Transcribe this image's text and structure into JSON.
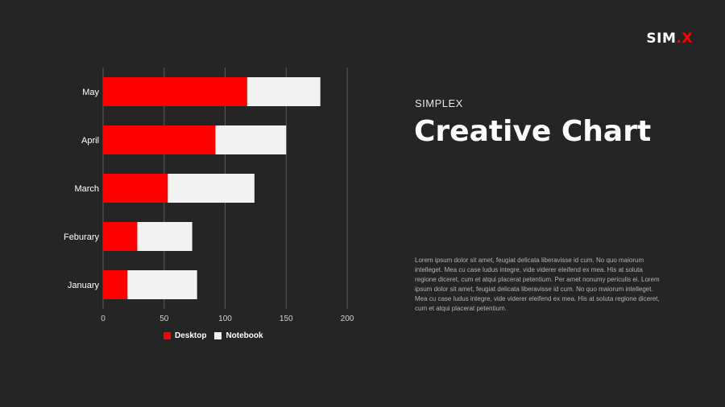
{
  "brand": {
    "logo_main": "SIM",
    "logo_dot": ".",
    "logo_tail": "X"
  },
  "kicker": "SIMPLEX",
  "title": "Creative Chart",
  "body_text": "Lorem ipsum dolor sit amet, feugiat delicata liberavisse id cum. No quo maiorum intelleget. Mea cu case ludus integre, vide viderer eleifend ex mea. His at soluta regione diceret, cum et atqui placerat petentium. Per amet nonumy periculis ei. Lorem ipsum dolor sit amet, feugiat delicata liberavisse id cum. No quo maiorum intelleget. Mea cu case ludus integre, vide viderer eleifend ex mea. His at soluta regione diceret, cum et atqui placerat petentium.",
  "colors": {
    "background": "#252525",
    "desktop": "#ff0000",
    "notebook": "#f2f2f2",
    "grid": "#5a5a5a",
    "text": "#ffffff"
  },
  "chart_data": {
    "type": "bar",
    "orientation": "horizontal",
    "stacked": true,
    "categories": [
      "January",
      "Feburary",
      "March",
      "April",
      "May"
    ],
    "series": [
      {
        "name": "Desktop",
        "color": "#ff0000",
        "values": [
          20,
          28,
          53,
          92,
          118
        ]
      },
      {
        "name": "Notebook",
        "color": "#f2f2f2",
        "values": [
          57,
          45,
          71,
          58,
          60
        ]
      }
    ],
    "xlim": [
      0,
      200
    ],
    "xticks": [
      0,
      50,
      100,
      150,
      200
    ],
    "grid": "vertical",
    "legend": "bottom"
  }
}
